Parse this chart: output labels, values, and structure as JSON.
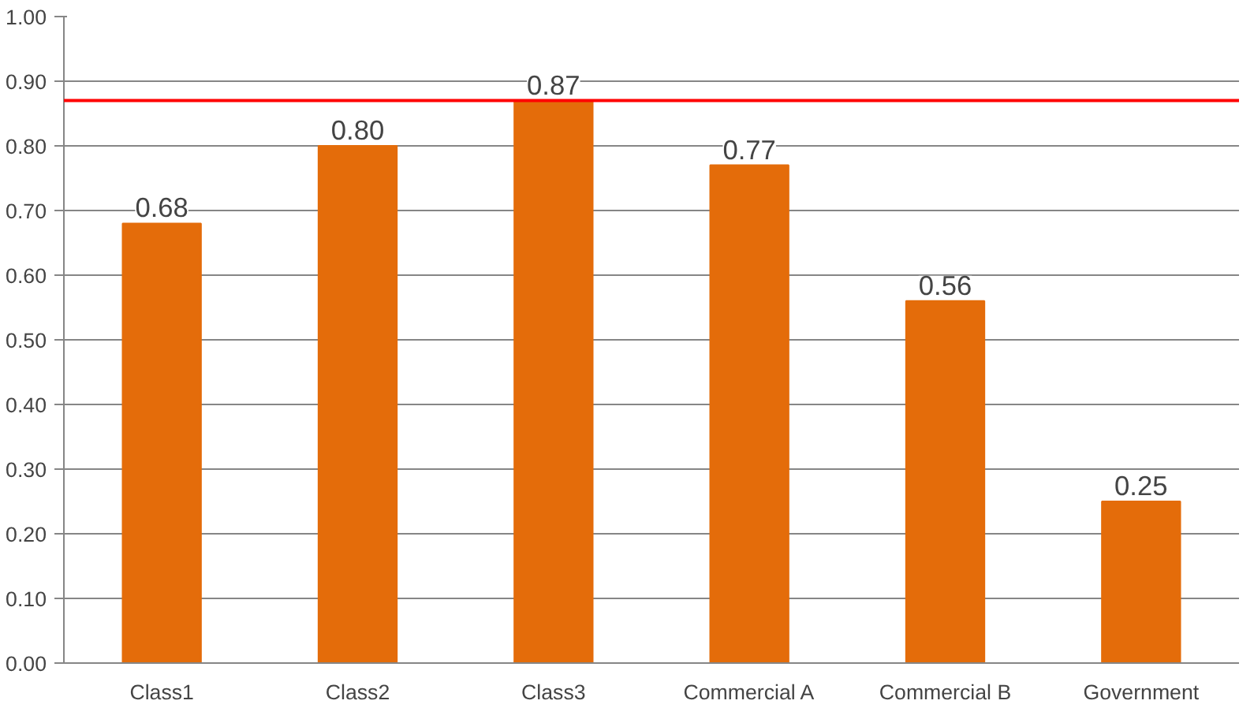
{
  "chart_data": {
    "type": "bar",
    "categories": [
      "Class1",
      "Class2",
      "Class3",
      "Commercial A",
      "Commercial B",
      "Government"
    ],
    "values": [
      0.68,
      0.8,
      0.87,
      0.77,
      0.56,
      0.25
    ],
    "value_labels": [
      "0.68",
      "0.80",
      "0.87",
      "0.77",
      "0.56",
      "0.25"
    ],
    "color": "#e46c0a",
    "ylim": [
      0,
      1
    ],
    "yticks": [
      {
        "value": 0,
        "label": "0.00"
      },
      {
        "value": 0.1,
        "label": "0.10"
      },
      {
        "value": 0.2,
        "label": "0.20"
      },
      {
        "value": 0.3,
        "label": "0.30"
      },
      {
        "value": 0.4,
        "label": "0.40"
      },
      {
        "value": 0.5,
        "label": "0.50"
      },
      {
        "value": 0.6,
        "label": "0.60"
      },
      {
        "value": 0.7,
        "label": "0.70"
      },
      {
        "value": 0.8,
        "label": "0.80"
      },
      {
        "value": 0.9,
        "label": "0.90"
      },
      {
        "value": 1,
        "label": "1.00"
      }
    ],
    "ref_lines": [
      {
        "axis": "y",
        "value": 0.87,
        "color": "#ff0000"
      }
    ],
    "grid": "y"
  }
}
